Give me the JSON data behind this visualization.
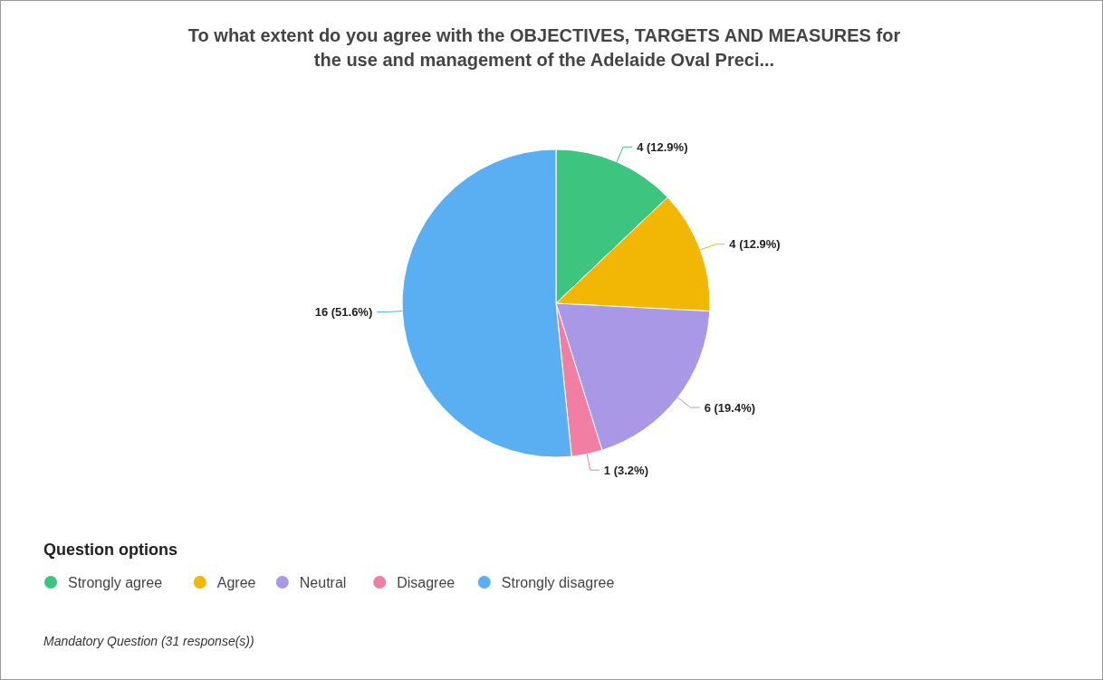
{
  "chart_data": {
    "type": "pie",
    "title": "To what extent do you agree with the OBJECTIVES, TARGETS AND MEASURES for the use and management of the Adelaide Oval Preci...",
    "categories": [
      "Strongly agree",
      "Agree",
      "Neutral",
      "Disagree",
      "Strongly disagree"
    ],
    "values": [
      4,
      4,
      6,
      1,
      16
    ],
    "value_labels": [
      "4 (12.9%)",
      "4 (12.9%)",
      "6 (19.4%)",
      "1 (3.2%)",
      "16 (51.6%)"
    ],
    "colors": [
      "#3dc47e",
      "#f2b705",
      "#a898e6",
      "#f07fa3",
      "#5aaef2"
    ],
    "legend": "bottom",
    "legend_title": "Question options",
    "annotations": [
      "Mandatory Question (31 response(s))"
    ]
  }
}
